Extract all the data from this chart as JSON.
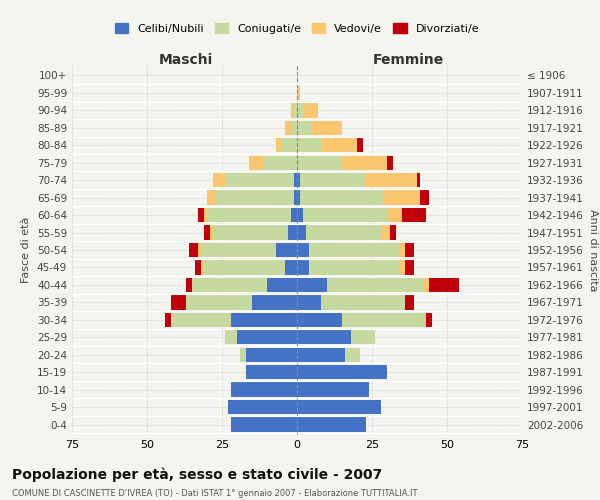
{
  "age_groups": [
    "0-4",
    "5-9",
    "10-14",
    "15-19",
    "20-24",
    "25-29",
    "30-34",
    "35-39",
    "40-44",
    "45-49",
    "50-54",
    "55-59",
    "60-64",
    "65-69",
    "70-74",
    "75-79",
    "80-84",
    "85-89",
    "90-94",
    "95-99",
    "100+"
  ],
  "birth_years": [
    "2002-2006",
    "1997-2001",
    "1992-1996",
    "1987-1991",
    "1982-1986",
    "1977-1981",
    "1972-1976",
    "1967-1971",
    "1962-1966",
    "1957-1961",
    "1952-1956",
    "1947-1951",
    "1942-1946",
    "1937-1941",
    "1932-1936",
    "1927-1931",
    "1922-1926",
    "1917-1921",
    "1912-1916",
    "1907-1911",
    "≤ 1906"
  ],
  "males": {
    "celibi": [
      22,
      23,
      22,
      17,
      17,
      20,
      22,
      15,
      10,
      4,
      7,
      3,
      2,
      1,
      1,
      0,
      0,
      0,
      0,
      0,
      0
    ],
    "coniugati": [
      0,
      0,
      0,
      0,
      2,
      4,
      20,
      22,
      25,
      27,
      25,
      25,
      28,
      26,
      23,
      11,
      5,
      2,
      1,
      0,
      0
    ],
    "vedovi": [
      0,
      0,
      0,
      0,
      0,
      0,
      0,
      0,
      0,
      1,
      1,
      1,
      1,
      3,
      4,
      5,
      2,
      2,
      1,
      0,
      0
    ],
    "divorziati": [
      0,
      0,
      0,
      0,
      0,
      0,
      2,
      5,
      2,
      2,
      3,
      2,
      2,
      0,
      0,
      0,
      0,
      0,
      0,
      0,
      0
    ]
  },
  "females": {
    "nubili": [
      23,
      28,
      24,
      30,
      16,
      18,
      15,
      8,
      10,
      4,
      4,
      3,
      2,
      1,
      1,
      0,
      0,
      0,
      0,
      0,
      0
    ],
    "coniugate": [
      0,
      0,
      0,
      0,
      5,
      8,
      28,
      28,
      32,
      30,
      30,
      25,
      28,
      28,
      22,
      15,
      8,
      5,
      2,
      0,
      0
    ],
    "vedove": [
      0,
      0,
      0,
      0,
      0,
      0,
      0,
      0,
      2,
      2,
      2,
      3,
      5,
      12,
      17,
      15,
      12,
      10,
      5,
      1,
      0
    ],
    "divorziate": [
      0,
      0,
      0,
      0,
      0,
      0,
      2,
      3,
      10,
      3,
      3,
      2,
      8,
      3,
      1,
      2,
      2,
      0,
      0,
      0,
      0
    ]
  },
  "colors": {
    "celibi": "#4472C4",
    "coniugati": "#C5D9A0",
    "vedovi": "#FAC76E",
    "divorziati": "#C0000A"
  },
  "xlim": 75,
  "title": "Popolazione per età, sesso e stato civile - 2007",
  "subtitle": "COMUNE DI CASCINETTE D'IVREA (TO) - Dati ISTAT 1° gennaio 2007 - Elaborazione TUTTITALIA.IT",
  "ylabel_left": "Fasce di età",
  "ylabel_right": "Anni di nascita",
  "legend_labels": [
    "Celibi/Nubili",
    "Coniugati/e",
    "Vedovi/e",
    "Divorziati/e"
  ],
  "background_color": "#F5F5F0"
}
